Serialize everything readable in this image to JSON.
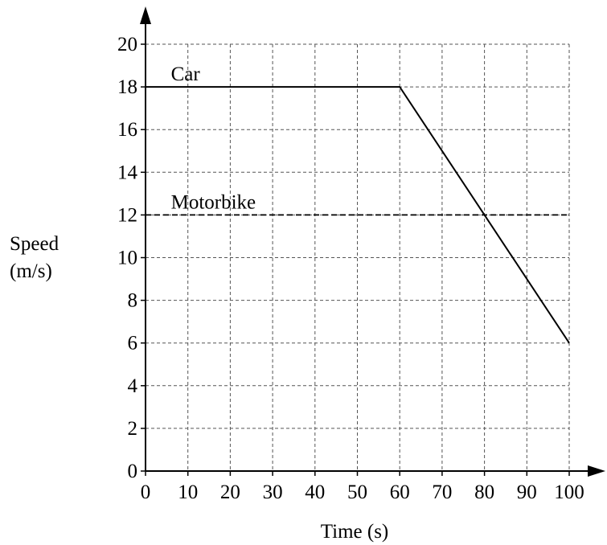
{
  "chart_data": {
    "type": "line",
    "xlabel": "Time (s)",
    "ylabel_lines": [
      "Speed",
      "(m/s)"
    ],
    "xlim": [
      0,
      100
    ],
    "ylim": [
      0,
      20
    ],
    "x_ticks": [
      0,
      10,
      20,
      30,
      40,
      50,
      60,
      70,
      80,
      90,
      100
    ],
    "y_ticks": [
      0,
      2,
      4,
      6,
      8,
      10,
      12,
      14,
      16,
      18,
      20
    ],
    "grid": true,
    "series": [
      {
        "name": "Car",
        "style": "solid",
        "points": [
          [
            0,
            18
          ],
          [
            60,
            18
          ],
          [
            100,
            6
          ]
        ]
      },
      {
        "name": "Motorbike",
        "style": "dashed",
        "points": [
          [
            0,
            12
          ],
          [
            100,
            12
          ]
        ]
      }
    ],
    "colors": {
      "line": "#000000",
      "grid": "#555555"
    }
  }
}
